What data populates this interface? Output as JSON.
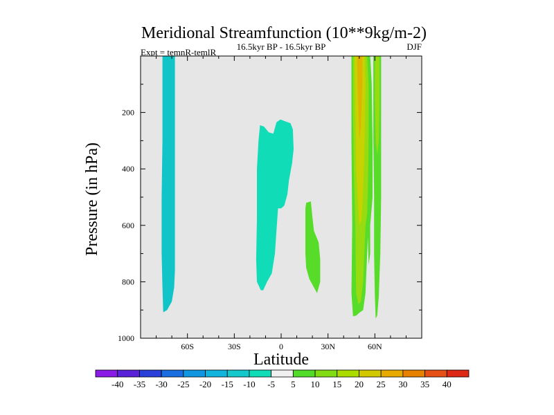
{
  "chart_data": {
    "type": "contour",
    "title": "Meridional Streamfunction (10**9kg/m-2)",
    "subtitle_left": "Expt = temnR-temlR",
    "subtitle_center": "16.5kyr BP - 16.5kyr BP",
    "subtitle_right": "DJF",
    "xlabel": "Latitude",
    "ylabel": "Pressure (in hPa)",
    "xlim": [
      -90,
      90
    ],
    "ylim": [
      0,
      1000
    ],
    "x_ticks": [
      {
        "value": -60,
        "label": "60S"
      },
      {
        "value": -30,
        "label": "30S"
      },
      {
        "value": 0,
        "label": "0"
      },
      {
        "value": 30,
        "label": "30N"
      },
      {
        "value": 60,
        "label": "60N"
      }
    ],
    "y_ticks": [
      {
        "value": 200,
        "label": "200"
      },
      {
        "value": 400,
        "label": "400"
      },
      {
        "value": 600,
        "label": "600"
      },
      {
        "value": 800,
        "label": "800"
      },
      {
        "value": 1000,
        "label": "1000"
      }
    ],
    "background_color": "#e6e6e6",
    "colorbar": {
      "labels": [
        "-40",
        "-35",
        "-30",
        "-25",
        "-20",
        "-15",
        "-10",
        "-5",
        "5",
        "10",
        "15",
        "20",
        "25",
        "30",
        "35",
        "40"
      ],
      "colors": [
        "#8a1ae6",
        "#5a22d8",
        "#2a40d8",
        "#1a6ee0",
        "#1296e0",
        "#10b4dc",
        "#14c8cc",
        "#10dcb8",
        "#f0f0f0",
        "#50dc28",
        "#82dc14",
        "#aadc00",
        "#d2c800",
        "#e6aa00",
        "#e68200",
        "#e65014",
        "#dc2814"
      ]
    },
    "regions": [
      {
        "name": "sh-high-lat-negative",
        "level": -10,
        "color": "#10c4c8",
        "points": [
          [
            -76,
            0
          ],
          [
            -68,
            0
          ],
          [
            -68,
            200
          ],
          [
            -68,
            760
          ],
          [
            -68.5,
            820
          ],
          [
            -70,
            870
          ],
          [
            -73,
            900
          ],
          [
            -75.5,
            908
          ],
          [
            -76,
            820
          ],
          [
            -76.5,
            700
          ],
          [
            -76.5,
            500
          ],
          [
            -76,
            300
          ],
          [
            -76,
            100
          ]
        ]
      },
      {
        "name": "tropical-negative-cell",
        "level": -5,
        "color": "#10dcb8",
        "points": [
          [
            -13.5,
            245
          ],
          [
            -11,
            250
          ],
          [
            -8,
            270
          ],
          [
            -5,
            275
          ],
          [
            -3,
            235
          ],
          [
            -0.5,
            225
          ],
          [
            3,
            232
          ],
          [
            6,
            238
          ],
          [
            7.5,
            260
          ],
          [
            8,
            330
          ],
          [
            7,
            380
          ],
          [
            5,
            440
          ],
          [
            4,
            490
          ],
          [
            2,
            530
          ],
          [
            0,
            540
          ],
          [
            -2,
            540
          ],
          [
            -3,
            620
          ],
          [
            -4,
            700
          ],
          [
            -6,
            770
          ],
          [
            -9,
            800
          ],
          [
            -11.5,
            830
          ],
          [
            -13,
            830
          ],
          [
            -15.5,
            800
          ],
          [
            -16,
            720
          ],
          [
            -15.5,
            580
          ],
          [
            -15.5,
            400
          ],
          [
            -14.5,
            300
          ]
        ]
      },
      {
        "name": "nh-subtropical-positive-cell",
        "level": 10,
        "color": "#58dc2a",
        "points": [
          [
            16,
            520
          ],
          [
            19,
            515
          ],
          [
            20,
            570
          ],
          [
            21,
            620
          ],
          [
            24,
            660
          ],
          [
            25,
            720
          ],
          [
            25,
            800
          ],
          [
            23,
            840
          ],
          [
            21,
            820
          ],
          [
            18,
            790
          ],
          [
            16,
            750
          ],
          [
            15.5,
            700
          ],
          [
            15.5,
            600
          ],
          [
            15.5,
            540
          ]
        ]
      },
      {
        "name": "nh-midlat-weak-band",
        "level": 10,
        "color": "#58dc2a",
        "points": [
          [
            45,
            0
          ],
          [
            57,
            0
          ],
          [
            58,
            100
          ],
          [
            58.5,
            300
          ],
          [
            58.5,
            500
          ],
          [
            57,
            600
          ],
          [
            57,
            700
          ],
          [
            56,
            740
          ],
          [
            55.5,
            640
          ],
          [
            54,
            840
          ],
          [
            52.5,
            900
          ],
          [
            50,
            910
          ],
          [
            48,
            920
          ],
          [
            46,
            922
          ],
          [
            45,
            840
          ],
          [
            45.5,
            600
          ],
          [
            45,
            300
          ]
        ]
      },
      {
        "name": "nh-midlat-moderate-band",
        "level": 15,
        "color": "#96dc10",
        "points": [
          [
            46,
            0
          ],
          [
            55,
            0
          ],
          [
            56,
            100
          ],
          [
            56,
            300
          ],
          [
            55.5,
            480
          ],
          [
            55,
            560
          ],
          [
            54,
            600
          ],
          [
            52.5,
            800
          ],
          [
            51,
            870
          ],
          [
            49.5,
            880
          ],
          [
            48,
            840
          ],
          [
            47.5,
            600
          ],
          [
            46.5,
            400
          ],
          [
            46,
            200
          ]
        ]
      },
      {
        "name": "nh-midlat-jet-core",
        "level": 20,
        "color": "#c8d200",
        "points": [
          [
            47,
            0
          ],
          [
            53.5,
            0
          ],
          [
            54,
            100
          ],
          [
            53.5,
            300
          ],
          [
            52.5,
            480
          ],
          [
            51.5,
            580
          ],
          [
            50,
            600
          ],
          [
            49,
            500
          ],
          [
            48,
            400
          ],
          [
            47.5,
            200
          ]
        ]
      },
      {
        "name": "nh-midlat-jet-maximum",
        "level": 25,
        "color": "#deb400",
        "points": [
          [
            48.5,
            0
          ],
          [
            52,
            0
          ],
          [
            52,
            100
          ],
          [
            51,
            250
          ],
          [
            50,
            300
          ],
          [
            49.5,
            200
          ],
          [
            49,
            100
          ]
        ]
      },
      {
        "name": "nh-high-lat-positive-band",
        "level": 10,
        "color": "#58dc2a",
        "points": [
          [
            59,
            0
          ],
          [
            64,
            0
          ],
          [
            64,
            200
          ],
          [
            64,
            500
          ],
          [
            63.5,
            700
          ],
          [
            62.5,
            850
          ],
          [
            61.5,
            920
          ],
          [
            60.5,
            930
          ],
          [
            60,
            850
          ],
          [
            59.5,
            700
          ],
          [
            59.5,
            500
          ],
          [
            59,
            300
          ]
        ]
      },
      {
        "name": "nh-high-lat-moderate-band",
        "level": 15,
        "color": "#96dc10",
        "points": [
          [
            60,
            0
          ],
          [
            63,
            0
          ],
          [
            63,
            150
          ],
          [
            62.5,
            300
          ],
          [
            61.5,
            350
          ],
          [
            60.5,
            300
          ],
          [
            60,
            150
          ]
        ]
      }
    ]
  }
}
